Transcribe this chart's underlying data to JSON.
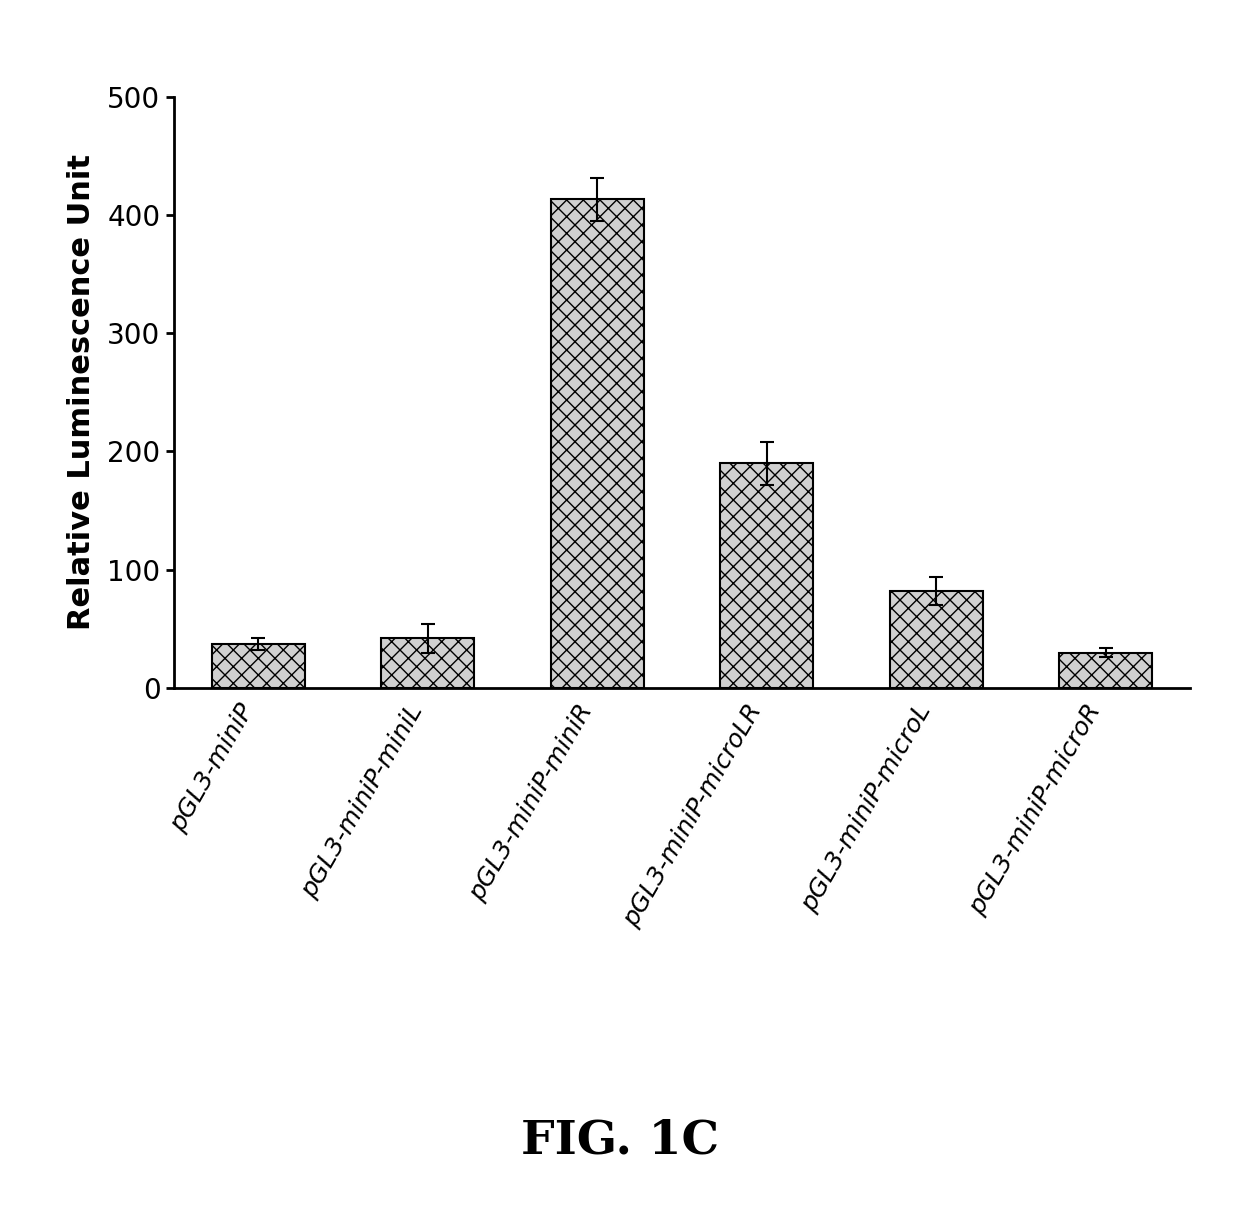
{
  "categories": [
    "pGL3-miniP",
    "pGL3-miniP-miniL",
    "pGL3-miniP-miniR",
    "pGL3-miniP-microLR",
    "pGL3-miniP-microL",
    "pGL3-miniP-microR"
  ],
  "values": [
    37,
    42,
    413,
    190,
    82,
    30
  ],
  "errors": [
    5,
    12,
    18,
    18,
    12,
    4
  ],
  "ylabel": "Relative Luminescence Unit",
  "ylim": [
    0,
    500
  ],
  "yticks": [
    0,
    100,
    200,
    300,
    400,
    500
  ],
  "figure_label": "FIG. 1C",
  "bar_color": "#d0d0d0",
  "bar_hatch": "xx",
  "bar_edgecolor": "#000000",
  "background_color": "#ffffff",
  "bar_width": 0.55,
  "label_rotation": 60,
  "label_fontsize": 18,
  "ylabel_fontsize": 22,
  "ytick_fontsize": 20,
  "cap_size": 5,
  "fig_label_fontsize": 34
}
